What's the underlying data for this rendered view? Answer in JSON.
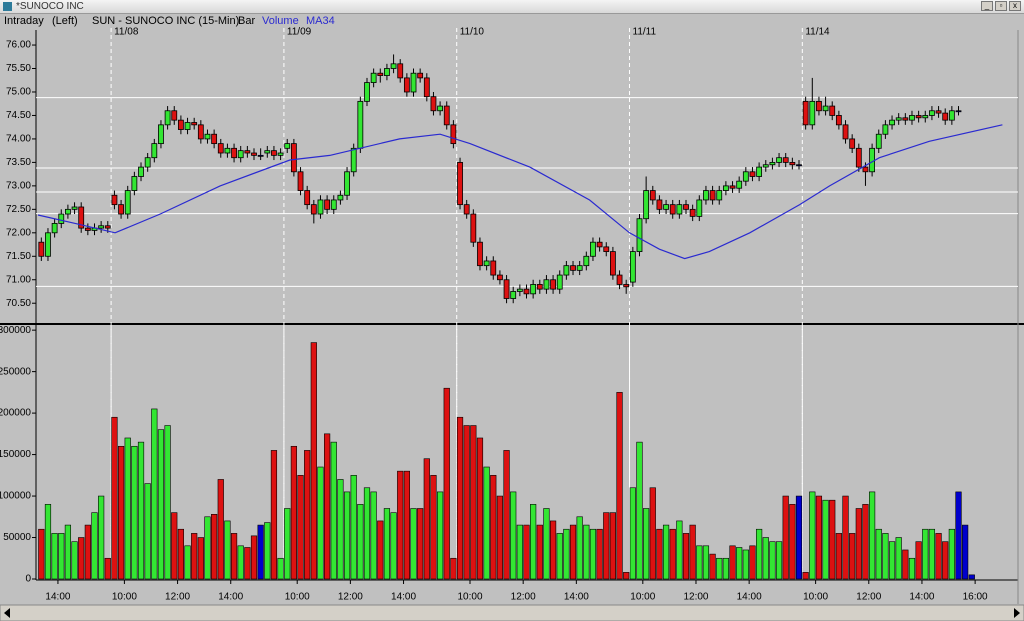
{
  "window": {
    "title": "*SUNOCO INC"
  },
  "chart_data": [
    {
      "type": "candlestick",
      "header": {
        "mode": "Intraday",
        "side": "(Left)",
        "symbol": "SUN - SUNOCO INC (15-Min)",
        "style": "Bar",
        "studies": [
          "Volume",
          "MA34"
        ]
      },
      "up_color": "#33e633",
      "down_color": "#dd1111",
      "flat_color": "#0000cc",
      "xlim": [
        0,
        147
      ],
      "xticks": [
        {
          "value": 11,
          "label": "11/08"
        },
        {
          "value": 37,
          "label": "11/09"
        },
        {
          "value": 63,
          "label": "11/10"
        },
        {
          "value": 89,
          "label": "11/11"
        },
        {
          "value": 115,
          "label": "11/14"
        }
      ],
      "ylim": [
        70.1,
        76.15
      ],
      "yticks": [
        {
          "value": 70.5,
          "label": "70.50"
        },
        {
          "value": 71,
          "label": "71.00"
        },
        {
          "value": 71.5,
          "label": "71.50"
        },
        {
          "value": 72,
          "label": "72.00"
        },
        {
          "value": 72.5,
          "label": "72.50"
        },
        {
          "value": 73,
          "label": "73.00"
        },
        {
          "value": 73.5,
          "label": "73.50"
        },
        {
          "value": 74,
          "label": "74.00"
        },
        {
          "value": 74.5,
          "label": "74.50"
        },
        {
          "value": 75,
          "label": "75.00"
        },
        {
          "value": 75.5,
          "label": "75.50"
        },
        {
          "value": 76,
          "label": "76.00"
        }
      ],
      "hlines": [
        74.88,
        73.38,
        72.87,
        72.41,
        70.86
      ],
      "ohlc": [
        [
          71.8,
          71.9,
          71.4,
          71.5
        ],
        [
          71.5,
          72.1,
          71.4,
          72.0
        ],
        [
          72.0,
          72.3,
          71.9,
          72.2
        ],
        [
          72.2,
          72.5,
          72.1,
          72.4
        ],
        [
          72.4,
          72.6,
          72.3,
          72.5
        ],
        [
          72.5,
          72.65,
          72.4,
          72.55
        ],
        [
          72.55,
          72.65,
          72.0,
          72.1
        ],
        [
          72.1,
          72.2,
          71.95,
          72.05
        ],
        [
          72.05,
          72.2,
          71.95,
          72.1
        ],
        [
          72.1,
          72.25,
          72.0,
          72.15
        ],
        [
          72.15,
          72.25,
          72.0,
          72.1
        ],
        [
          72.8,
          72.9,
          72.5,
          72.6
        ],
        [
          72.6,
          72.7,
          72.3,
          72.4
        ],
        [
          72.4,
          73.0,
          72.3,
          72.9
        ],
        [
          72.9,
          73.3,
          72.8,
          73.2
        ],
        [
          73.2,
          73.5,
          73.1,
          73.4
        ],
        [
          73.4,
          73.7,
          73.3,
          73.6
        ],
        [
          73.6,
          74.0,
          73.5,
          73.9
        ],
        [
          73.9,
          74.4,
          73.8,
          74.3
        ],
        [
          74.3,
          74.7,
          74.2,
          74.6
        ],
        [
          74.6,
          74.7,
          74.3,
          74.4
        ],
        [
          74.4,
          74.5,
          74.1,
          74.2
        ],
        [
          74.2,
          74.45,
          74.1,
          74.35
        ],
        [
          74.35,
          74.45,
          74.2,
          74.3
        ],
        [
          74.3,
          74.4,
          73.9,
          74.0
        ],
        [
          74.0,
          74.2,
          73.9,
          74.1
        ],
        [
          74.1,
          74.2,
          73.8,
          73.9
        ],
        [
          73.9,
          74.0,
          73.6,
          73.7
        ],
        [
          73.7,
          73.9,
          73.6,
          73.8
        ],
        [
          73.8,
          73.9,
          73.5,
          73.6
        ],
        [
          73.6,
          73.85,
          73.5,
          73.75
        ],
        [
          73.75,
          73.85,
          73.6,
          73.7
        ],
        [
          73.7,
          73.8,
          73.55,
          73.65
        ],
        [
          73.65,
          73.8,
          73.55,
          73.65
        ],
        [
          73.7,
          73.85,
          73.6,
          73.75
        ],
        [
          73.75,
          73.85,
          73.55,
          73.65
        ],
        [
          73.65,
          73.8,
          73.55,
          73.7
        ],
        [
          73.8,
          74.0,
          73.7,
          73.9
        ],
        [
          73.9,
          74.0,
          73.2,
          73.3
        ],
        [
          73.3,
          73.4,
          72.8,
          72.9
        ],
        [
          72.9,
          73.0,
          72.5,
          72.6
        ],
        [
          72.6,
          72.7,
          72.2,
          72.4
        ],
        [
          72.4,
          72.8,
          72.3,
          72.7
        ],
        [
          72.7,
          72.8,
          72.4,
          72.5
        ],
        [
          72.5,
          72.8,
          72.4,
          72.7
        ],
        [
          72.7,
          72.9,
          72.6,
          72.8
        ],
        [
          72.8,
          73.4,
          72.7,
          73.3
        ],
        [
          73.3,
          73.9,
          73.2,
          73.8
        ],
        [
          73.8,
          74.9,
          73.7,
          74.8
        ],
        [
          74.8,
          75.3,
          74.7,
          75.2
        ],
        [
          75.2,
          75.5,
          75.1,
          75.4
        ],
        [
          75.4,
          75.5,
          75.2,
          75.35
        ],
        [
          75.35,
          75.6,
          75.25,
          75.5
        ],
        [
          75.5,
          75.8,
          75.4,
          75.6
        ],
        [
          75.6,
          75.7,
          75.2,
          75.3
        ],
        [
          75.3,
          75.4,
          74.9,
          75.0
        ],
        [
          75.0,
          75.5,
          74.9,
          75.4
        ],
        [
          75.4,
          75.5,
          75.2,
          75.3
        ],
        [
          75.3,
          75.4,
          74.8,
          74.9
        ],
        [
          74.9,
          75.0,
          74.5,
          74.6
        ],
        [
          74.6,
          74.8,
          74.5,
          74.7
        ],
        [
          74.7,
          74.8,
          74.2,
          74.3
        ],
        [
          74.3,
          74.4,
          73.8,
          73.9
        ],
        [
          73.5,
          73.6,
          72.5,
          72.6
        ],
        [
          72.6,
          72.7,
          72.3,
          72.4
        ],
        [
          72.4,
          72.5,
          71.7,
          71.8
        ],
        [
          71.8,
          71.9,
          71.2,
          71.3
        ],
        [
          71.3,
          71.5,
          71.2,
          71.4
        ],
        [
          71.4,
          71.5,
          71.0,
          71.1
        ],
        [
          71.1,
          71.2,
          70.9,
          71.0
        ],
        [
          71.0,
          71.1,
          70.5,
          70.6
        ],
        [
          70.6,
          70.85,
          70.5,
          70.75
        ],
        [
          70.75,
          70.9,
          70.65,
          70.8
        ],
        [
          70.8,
          70.9,
          70.6,
          70.7
        ],
        [
          70.7,
          71.0,
          70.6,
          70.9
        ],
        [
          70.9,
          71.0,
          70.7,
          70.8
        ],
        [
          70.8,
          71.1,
          70.7,
          71.0
        ],
        [
          71.0,
          71.1,
          70.7,
          70.8
        ],
        [
          70.8,
          71.2,
          70.7,
          71.1
        ],
        [
          71.1,
          71.4,
          71.0,
          71.3
        ],
        [
          71.3,
          71.4,
          71.1,
          71.2
        ],
        [
          71.2,
          71.4,
          71.1,
          71.3
        ],
        [
          71.3,
          71.6,
          71.2,
          71.5
        ],
        [
          71.5,
          71.9,
          71.4,
          71.8
        ],
        [
          71.8,
          71.9,
          71.6,
          71.7
        ],
        [
          71.7,
          71.8,
          71.5,
          71.6
        ],
        [
          71.6,
          71.7,
          71.0,
          71.1
        ],
        [
          71.1,
          71.2,
          70.8,
          70.9
        ],
        [
          70.9,
          71.0,
          70.7,
          70.85
        ],
        [
          70.95,
          71.7,
          70.85,
          71.6
        ],
        [
          71.6,
          72.4,
          71.5,
          72.3
        ],
        [
          72.3,
          73.2,
          72.2,
          72.9
        ],
        [
          72.9,
          73.0,
          72.6,
          72.7
        ],
        [
          72.7,
          72.8,
          72.4,
          72.5
        ],
        [
          72.5,
          72.7,
          72.4,
          72.6
        ],
        [
          72.6,
          72.7,
          72.3,
          72.4
        ],
        [
          72.4,
          72.7,
          72.3,
          72.6
        ],
        [
          72.6,
          72.7,
          72.4,
          72.5
        ],
        [
          72.5,
          72.6,
          72.25,
          72.35
        ],
        [
          72.35,
          72.8,
          72.25,
          72.7
        ],
        [
          72.7,
          73.0,
          72.6,
          72.9
        ],
        [
          72.9,
          73.0,
          72.6,
          72.7
        ],
        [
          72.7,
          73.0,
          72.6,
          72.9
        ],
        [
          72.9,
          73.1,
          72.8,
          73.0
        ],
        [
          73.0,
          73.1,
          72.85,
          72.95
        ],
        [
          72.95,
          73.2,
          72.85,
          73.1
        ],
        [
          73.1,
          73.4,
          73.0,
          73.3
        ],
        [
          73.3,
          73.4,
          73.1,
          73.2
        ],
        [
          73.2,
          73.5,
          73.1,
          73.4
        ],
        [
          73.4,
          73.55,
          73.3,
          73.45
        ],
        [
          73.45,
          73.6,
          73.35,
          73.5
        ],
        [
          73.5,
          73.7,
          73.4,
          73.6
        ],
        [
          73.6,
          73.7,
          73.4,
          73.5
        ],
        [
          73.5,
          73.6,
          73.35,
          73.45
        ],
        [
          73.45,
          73.55,
          73.35,
          73.45
        ],
        [
          74.8,
          74.9,
          74.2,
          74.3
        ],
        [
          74.3,
          75.3,
          74.2,
          74.8
        ],
        [
          74.8,
          74.9,
          74.5,
          74.6
        ],
        [
          74.6,
          74.9,
          74.5,
          74.7
        ],
        [
          74.7,
          74.8,
          74.4,
          74.5
        ],
        [
          74.5,
          74.6,
          74.2,
          74.3
        ],
        [
          74.3,
          74.4,
          73.9,
          74.0
        ],
        [
          74.0,
          74.1,
          73.7,
          73.8
        ],
        [
          73.8,
          73.9,
          73.3,
          73.4
        ],
        [
          73.4,
          73.5,
          73.0,
          73.3
        ],
        [
          73.3,
          73.9,
          73.2,
          73.8
        ],
        [
          73.8,
          74.2,
          73.7,
          74.1
        ],
        [
          74.1,
          74.4,
          74.0,
          74.3
        ],
        [
          74.3,
          74.5,
          74.2,
          74.4
        ],
        [
          74.4,
          74.55,
          74.3,
          74.45
        ],
        [
          74.45,
          74.55,
          74.3,
          74.4
        ],
        [
          74.4,
          74.6,
          74.3,
          74.5
        ],
        [
          74.5,
          74.6,
          74.35,
          74.45
        ],
        [
          74.45,
          74.6,
          74.35,
          74.5
        ],
        [
          74.5,
          74.7,
          74.4,
          74.6
        ],
        [
          74.6,
          74.7,
          74.45,
          74.55
        ],
        [
          74.55,
          74.65,
          74.3,
          74.4
        ],
        [
          74.4,
          74.7,
          74.3,
          74.6
        ],
        [
          74.6,
          74.7,
          74.5,
          74.6
        ],
        null,
        null
      ],
      "series": [
        {
          "name": "MA34",
          "color": "#2a2ad0",
          "x": [
            0,
            5.6,
            11.6,
            18.4,
            27.4,
            37.9,
            43.9,
            54.4,
            60.5,
            65.0,
            74.0,
            83.0,
            89.0,
            93.5,
            97.3,
            101.0,
            107.1,
            114.6,
            119.1,
            126.6,
            134.1,
            145.1
          ],
          "values": [
            72.38,
            72.2,
            72.0,
            72.4,
            73.0,
            73.55,
            73.65,
            74.0,
            74.1,
            73.9,
            73.4,
            72.7,
            72.0,
            71.65,
            71.45,
            71.6,
            72.0,
            72.6,
            73.0,
            73.6,
            73.95,
            74.3
          ]
        }
      ]
    },
    {
      "type": "bar",
      "xlim": [
        0,
        147
      ],
      "xticks": [
        {
          "value": 3,
          "label": "14:00"
        },
        {
          "value": 13,
          "label": "10:00"
        },
        {
          "value": 21,
          "label": "12:00"
        },
        {
          "value": 29,
          "label": "14:00"
        },
        {
          "value": 39,
          "label": "10:00"
        },
        {
          "value": 47,
          "label": "12:00"
        },
        {
          "value": 55,
          "label": "14:00"
        },
        {
          "value": 65,
          "label": "10:00"
        },
        {
          "value": 73,
          "label": "12:00"
        },
        {
          "value": 81,
          "label": "14:00"
        },
        {
          "value": 91,
          "label": "10:00"
        },
        {
          "value": 99,
          "label": "12:00"
        },
        {
          "value": 107,
          "label": "14:00"
        },
        {
          "value": 117,
          "label": "10:00"
        },
        {
          "value": 125,
          "label": "12:00"
        },
        {
          "value": 133,
          "label": "14:00"
        },
        {
          "value": 141,
          "label": "16:00"
        }
      ],
      "ylim": [
        0,
        305000
      ],
      "yticks": [
        0,
        50000,
        100000,
        150000,
        200000,
        250000,
        300000
      ],
      "values": [
        60000,
        90000,
        55000,
        55000,
        65000,
        45000,
        50000,
        65000,
        80000,
        100000,
        25000,
        195000,
        160000,
        170000,
        160000,
        165000,
        115000,
        205000,
        180000,
        185000,
        80000,
        60000,
        40000,
        55000,
        50000,
        75000,
        78000,
        120000,
        70000,
        55000,
        40000,
        38000,
        52000,
        65000,
        68000,
        155000,
        25000,
        85000,
        160000,
        125000,
        155000,
        285000,
        135000,
        175000,
        165000,
        120000,
        105000,
        125000,
        90000,
        110000,
        105000,
        70000,
        85000,
        80000,
        130000,
        130000,
        85000,
        85000,
        145000,
        125000,
        105000,
        230000,
        25000,
        195000,
        185000,
        185000,
        170000,
        135000,
        125000,
        100000,
        155000,
        105000,
        65000,
        65000,
        90000,
        65000,
        85000,
        70000,
        55000,
        60000,
        65000,
        75000,
        65000,
        60000,
        60000,
        80000,
        80000,
        225000,
        8000,
        110000,
        165000,
        85000,
        110000,
        60000,
        65000,
        60000,
        70000,
        55000,
        65000,
        40000,
        40000,
        30000,
        25000,
        25000,
        40000,
        38000,
        35000,
        40000,
        60000,
        50000,
        45000,
        45000,
        100000,
        90000,
        100000,
        8000,
        105000,
        100000,
        95000,
        95000,
        55000,
        100000,
        55000,
        85000,
        90000,
        105000,
        60000,
        55000,
        45000,
        50000,
        35000,
        25000,
        45000,
        60000,
        60000,
        55000,
        45000,
        60000,
        105000,
        65000,
        5000
      ]
    }
  ]
}
